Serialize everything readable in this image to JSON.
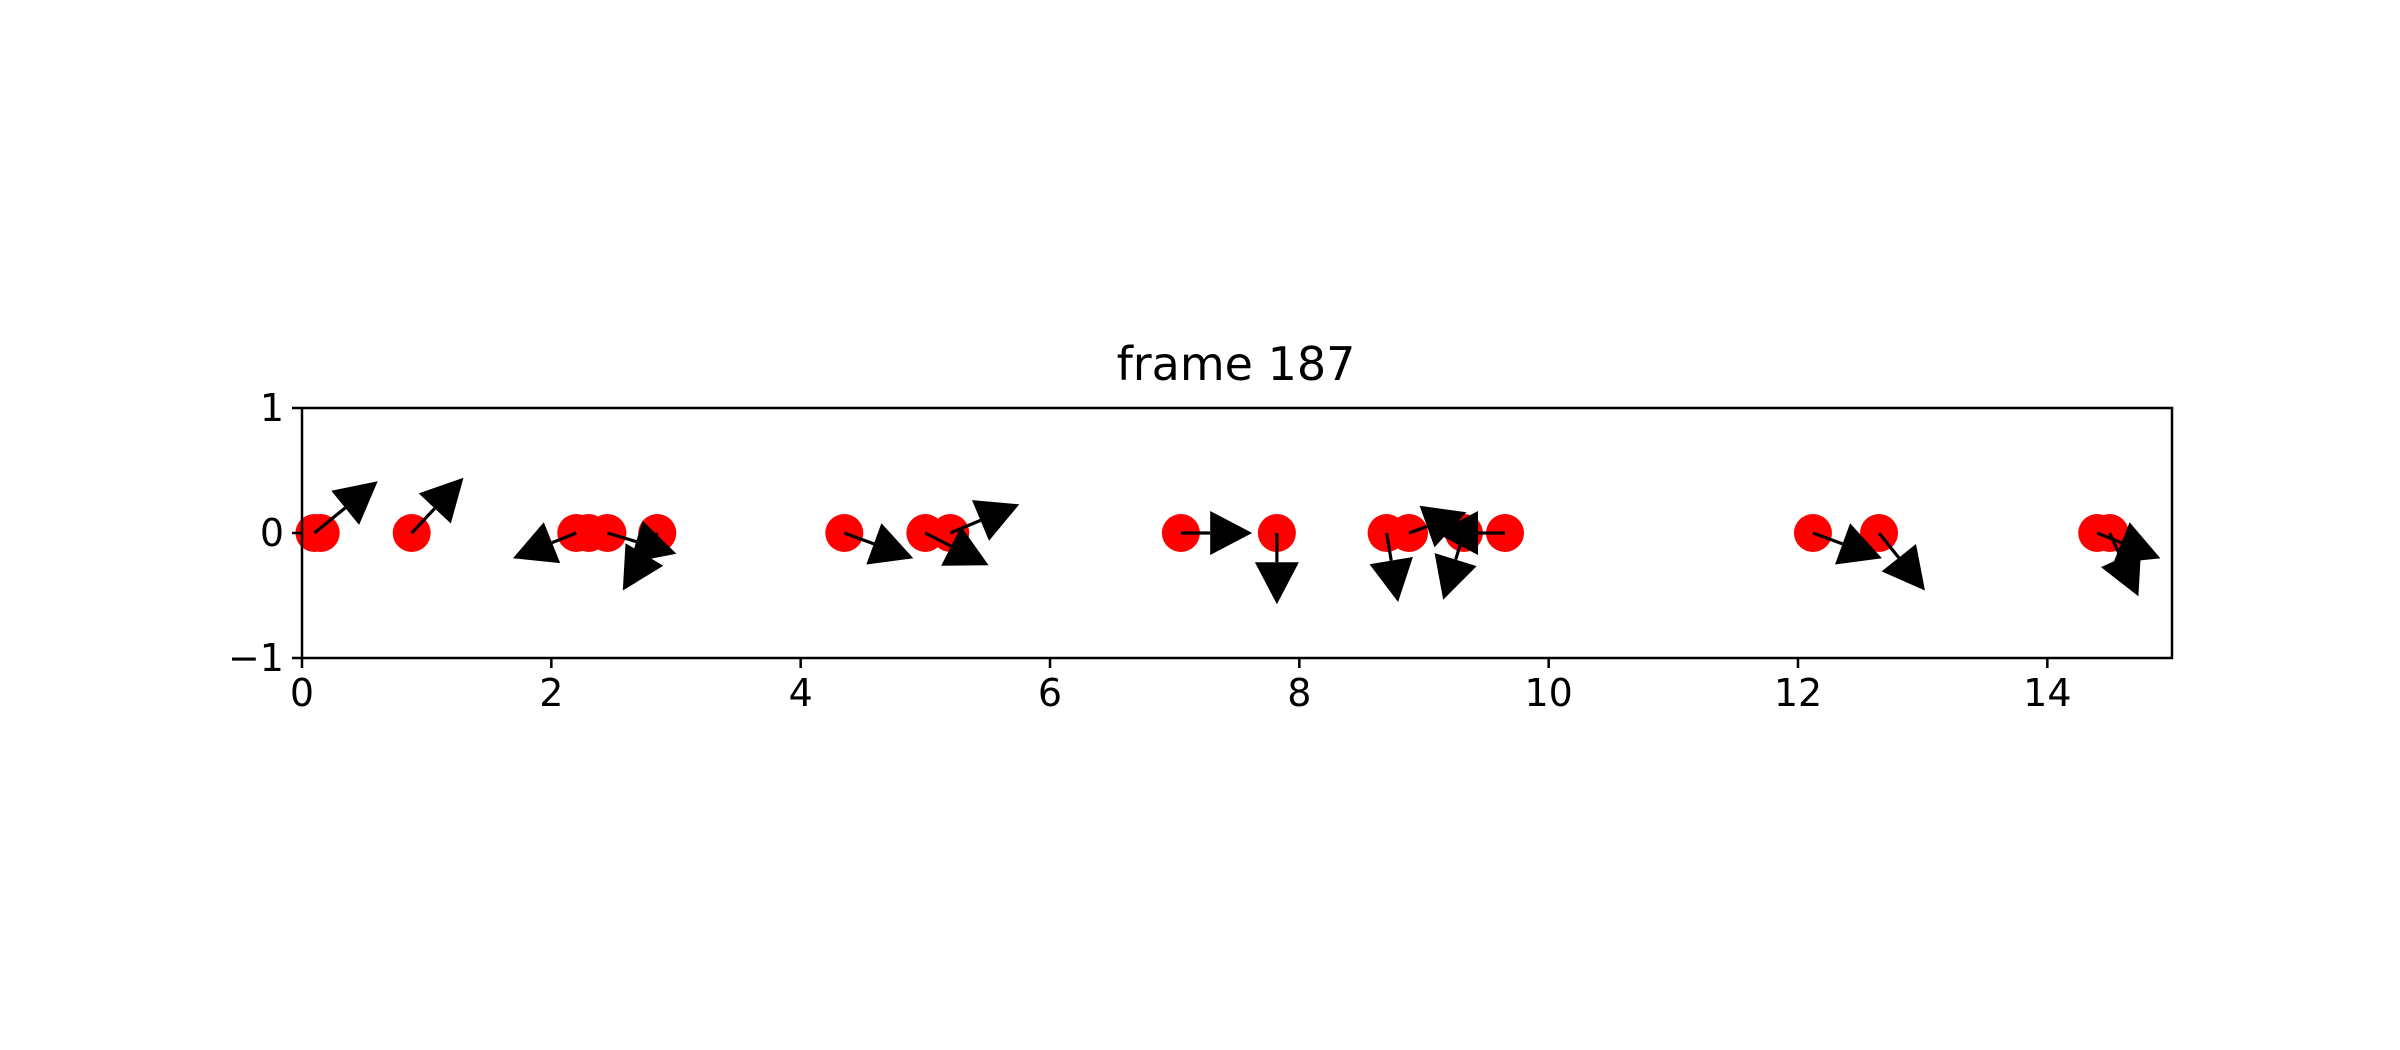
{
  "chart_data": {
    "type": "scatter",
    "title": "frame 187",
    "xlabel": "",
    "ylabel": "",
    "xlim": [
      0,
      15
    ],
    "ylim": [
      -1,
      1
    ],
    "xticks": [
      0,
      2,
      4,
      6,
      8,
      10,
      12,
      14
    ],
    "yticks": [
      -1,
      0,
      1
    ],
    "xtick_labels": [
      "0",
      "2",
      "4",
      "6",
      "8",
      "10",
      "12",
      "14"
    ],
    "ytick_labels": [
      "−1",
      "0",
      "1"
    ],
    "grid": false,
    "marker_color": "#ff0000",
    "arrow_color": "#000000",
    "points": [
      {
        "x": 0.1,
        "y": 0,
        "u": 0.55,
        "v": 0.45
      },
      {
        "x": 0.15,
        "y": 0,
        "u": 0
      },
      {
        "x": 0.88,
        "y": 0,
        "u": 0.45,
        "v": 0.48
      },
      {
        "x": 2.2,
        "y": 0,
        "u": -0.55,
        "v": -0.22
      },
      {
        "x": 2.3,
        "y": 0,
        "u": 0.0,
        "v": 0.0
      },
      {
        "x": 2.45,
        "y": 0,
        "u": 0.6,
        "v": -0.18
      },
      {
        "x": 2.85,
        "y": 0,
        "u": -0.3,
        "v": -0.5
      },
      {
        "x": 4.35,
        "y": 0,
        "u": 0.6,
        "v": -0.22
      },
      {
        "x": 5.0,
        "y": 0,
        "u": 0.55,
        "v": -0.28
      },
      {
        "x": 5.2,
        "y": 0,
        "u": 0.6,
        "v": 0.25
      },
      {
        "x": 7.05,
        "y": 0,
        "u": 0.62,
        "v": 0.0
      },
      {
        "x": 7.82,
        "y": 0,
        "u": 0.0,
        "v": -0.62
      },
      {
        "x": 8.7,
        "y": 0,
        "u": 0.1,
        "v": -0.6
      },
      {
        "x": 8.88,
        "y": 0,
        "u": 0.5,
        "v": 0.18
      },
      {
        "x": 9.32,
        "y": 0,
        "u": -0.18,
        "v": -0.58
      },
      {
        "x": 9.65,
        "y": 0,
        "u": -0.6,
        "v": 0.0
      },
      {
        "x": 12.12,
        "y": 0,
        "u": 0.6,
        "v": -0.22
      },
      {
        "x": 12.65,
        "y": 0,
        "u": 0.4,
        "v": -0.5
      },
      {
        "x": 14.4,
        "y": 0,
        "u": 0.55,
        "v": -0.22
      },
      {
        "x": 14.5,
        "y": 0,
        "u": 0.25,
        "v": -0.55
      }
    ]
  }
}
